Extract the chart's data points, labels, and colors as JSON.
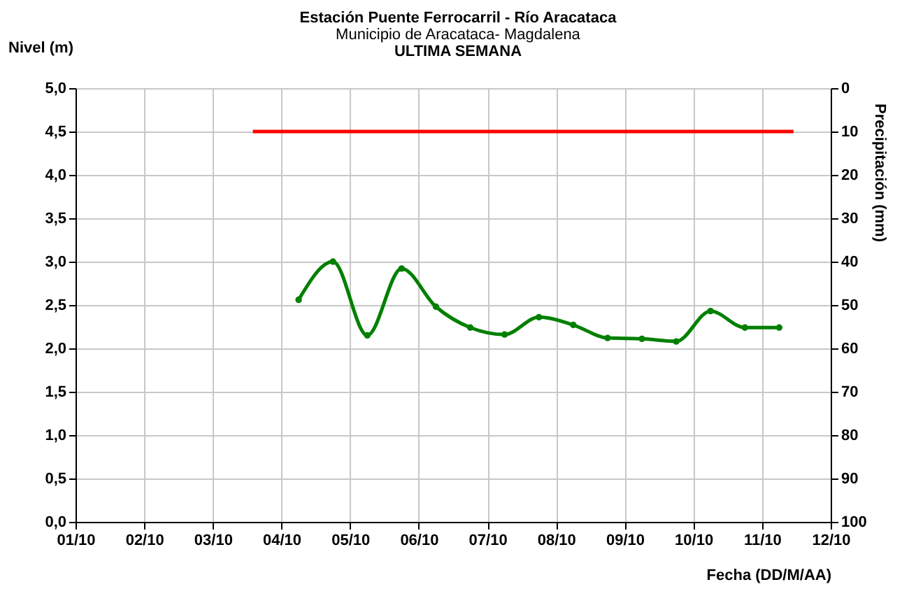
{
  "chart_data": {
    "type": "line",
    "title": "Estación Puente Ferrocarril - Río Aracataca",
    "subtitle": "Municipio de Aracataca- Magdalena",
    "annotations": [
      "ULTIMA SEMANA"
    ],
    "xlabel": "Fecha (DD/M/AA)",
    "ylabel": "Nivel (m)",
    "y2label": "Precipitación (mm)",
    "xlim": [
      "--10-01",
      "--10-12"
    ],
    "xticks": [
      {
        "value": "--10-01",
        "label": "01/10"
      },
      {
        "value": "--10-02",
        "label": "02/10"
      },
      {
        "value": "--10-03",
        "label": "03/10"
      },
      {
        "value": "--10-04",
        "label": "04/10"
      },
      {
        "value": "--10-05",
        "label": "05/10"
      },
      {
        "value": "--10-06",
        "label": "06/10"
      },
      {
        "value": "--10-07",
        "label": "07/10"
      },
      {
        "value": "--10-08",
        "label": "08/10"
      },
      {
        "value": "--10-09",
        "label": "09/10"
      },
      {
        "value": "--10-10",
        "label": "10/10"
      },
      {
        "value": "--10-11",
        "label": "11/10"
      },
      {
        "value": "--10-12",
        "label": "12/10"
      }
    ],
    "ylim": [
      0,
      5
    ],
    "yticks": [
      {
        "value": 0,
        "label": "0,0"
      },
      {
        "value": 0.5,
        "label": "0,5"
      },
      {
        "value": 1,
        "label": "1,0"
      },
      {
        "value": 1.5,
        "label": "1,5"
      },
      {
        "value": 2,
        "label": "2,0"
      },
      {
        "value": 2.5,
        "label": "2,5"
      },
      {
        "value": 3,
        "label": "3,0"
      },
      {
        "value": 3.5,
        "label": "3,5"
      },
      {
        "value": 4,
        "label": "4,0"
      },
      {
        "value": 4.5,
        "label": "4,5"
      },
      {
        "value": 5,
        "label": "5,0"
      }
    ],
    "y2lim": [
      100,
      0
    ],
    "y2ticks": [
      0,
      10,
      20,
      30,
      40,
      50,
      60,
      70,
      80,
      90,
      100
    ],
    "grid": true,
    "series": [
      {
        "color": "#008000",
        "marker": "circle",
        "x": [
          "--10-04T06:00",
          "--10-04T18:00",
          "--10-05T06:00",
          "--10-05T18:00",
          "--10-06T06:00",
          "--10-06T18:00",
          "--10-07T06:00",
          "--10-07T18:00",
          "--10-08T06:00",
          "--10-08T18:00",
          "--10-09T06:00",
          "--10-09T18:00",
          "--10-10T06:00",
          "--10-10T18:00",
          "--10-11T06:00"
        ],
        "values": [
          2.56,
          3.0,
          2.15,
          2.92,
          2.48,
          2.24,
          2.16,
          2.36,
          2.27,
          2.12,
          2.11,
          2.08,
          2.43,
          2.24,
          2.24
        ]
      },
      {
        "color": "#ff0000",
        "marker": "none",
        "x": [
          "--10-03T14:00",
          "--10-11T11:00"
        ],
        "values": [
          4.5,
          4.5
        ]
      }
    ]
  }
}
